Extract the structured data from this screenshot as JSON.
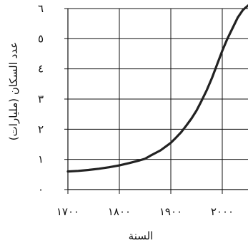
{
  "chart_data": {
    "type": "line",
    "xlabel": "السنة",
    "ylabel": "عدد السكان (مليارات)",
    "xlim": [
      1700,
      2050
    ],
    "ylim": [
      0,
      6
    ],
    "x_ticks": [
      1700,
      1800,
      1900,
      2000
    ],
    "x_tick_labels": [
      "١٧٠٠",
      "١٨٠٠",
      "١٩٠٠",
      "٢٠٠٠"
    ],
    "y_ticks": [
      0,
      1,
      2,
      3,
      4,
      5,
      6
    ],
    "y_tick_labels": [
      "٠",
      "١",
      "٢",
      "٣",
      "٤",
      "٥",
      "٦"
    ],
    "grid": true,
    "line_color": "#222222",
    "series": [
      {
        "x": [
          1700,
          1720,
          1740,
          1760,
          1780,
          1800,
          1820,
          1840,
          1850,
          1860,
          1880,
          1900,
          1910,
          1920,
          1930,
          1940,
          1950,
          1960,
          1970,
          1980,
          1990,
          2000,
          2010,
          2020,
          2030,
          2040,
          2050
        ],
        "values": [
          0.6,
          0.62,
          0.65,
          0.69,
          0.74,
          0.8,
          0.88,
          0.97,
          1.02,
          1.12,
          1.3,
          1.55,
          1.72,
          1.9,
          2.12,
          2.35,
          2.62,
          2.95,
          3.3,
          3.7,
          4.15,
          4.6,
          5.0,
          5.35,
          5.7,
          5.95,
          6.1
        ]
      }
    ]
  }
}
